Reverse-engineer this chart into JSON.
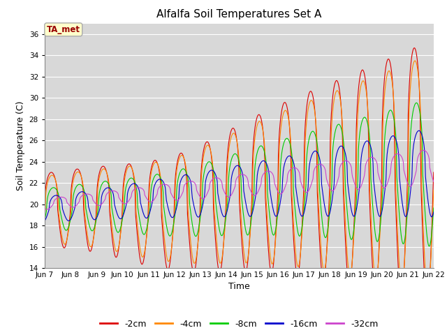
{
  "title": "Alfalfa Soil Temperatures Set A",
  "xlabel": "Time",
  "ylabel": "Soil Temperature (C)",
  "ylim": [
    14,
    37
  ],
  "yticks": [
    14,
    16,
    18,
    20,
    22,
    24,
    26,
    28,
    30,
    32,
    34,
    36
  ],
  "x_labels": [
    "Jun 7",
    "Jun 8",
    "Jun 9",
    "Jun 10",
    "Jun 11",
    "Jun 12",
    "Jun 13",
    "Jun 14",
    "Jun 15",
    "Jun 16",
    "Jun 17",
    "Jun 18",
    "Jun 19",
    "Jun 20",
    "Jun 21",
    "Jun 22"
  ],
  "annotation_text": "TA_met",
  "annotation_bg": "#ffffcc",
  "annotation_border": "#aaaaaa",
  "annotation_color": "#990000",
  "line_colors": {
    "-2cm": "#dd0000",
    "-4cm": "#ff8800",
    "-8cm": "#00cc00",
    "-16cm": "#0000cc",
    "-32cm": "#cc44cc"
  },
  "legend_labels": [
    "-2cm",
    "-4cm",
    "-8cm",
    "-16cm",
    "-32cm"
  ],
  "fig_bg": "#ffffff",
  "plot_bg": "#d8d8d8",
  "grid_color": "#ffffff"
}
